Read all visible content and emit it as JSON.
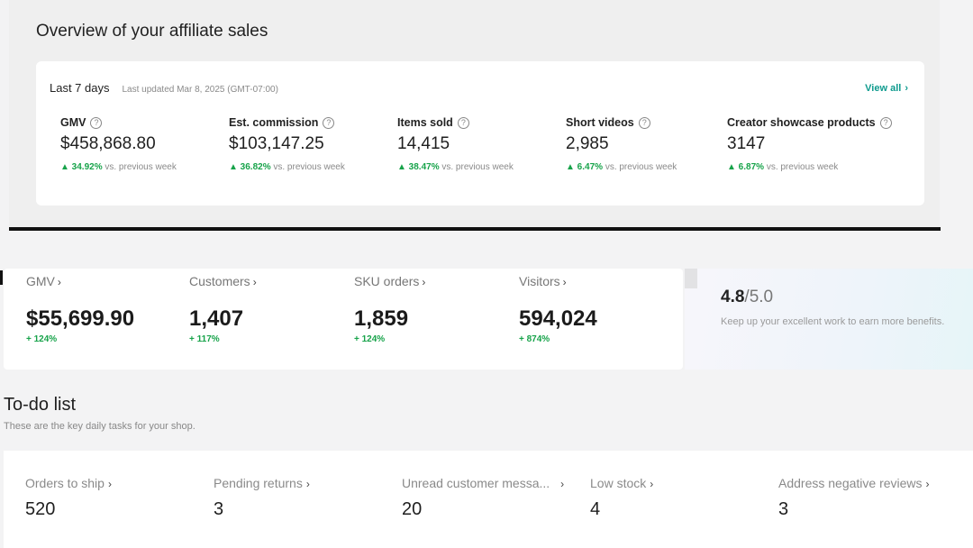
{
  "affiliate": {
    "title": "Overview of your affiliate sales",
    "period": "Last 7 days",
    "updated": "Last updated Mar 8, 2025 (GMT-07:00)",
    "view_all": "View all",
    "metrics": [
      {
        "label": "GMV",
        "value": "$458,868.80",
        "change_pct": "▲ 34.92%",
        "change_text": "vs. previous week"
      },
      {
        "label": "Est. commission",
        "value": "$103,147.25",
        "change_pct": "▲ 36.82%",
        "change_text": "vs. previous week"
      },
      {
        "label": "Items sold",
        "value": "14,415",
        "change_pct": "▲ 38.47%",
        "change_text": "vs. previous week"
      },
      {
        "label": "Short videos",
        "value": "2,985",
        "change_pct": "▲ 6.47%",
        "change_text": "vs. previous week"
      },
      {
        "label": "Creator showcase products",
        "value": "3147",
        "change_pct": "▲ 6.87%",
        "change_text": "vs. previous week"
      }
    ]
  },
  "shop_stats": [
    {
      "label": "GMV",
      "value": "$55,699.90",
      "change": "+ 124%"
    },
    {
      "label": "Customers",
      "value": "1,407",
      "change": "+ 117%"
    },
    {
      "label": "SKU orders",
      "value": "1,859",
      "change": "+ 124%"
    },
    {
      "label": "Visitors",
      "value": "594,024",
      "change": "+ 874%"
    }
  ],
  "rating": {
    "score": "4.8",
    "max": "/5.0",
    "note": "Keep up your excellent work to earn more benefits."
  },
  "todo": {
    "title": "To-do list",
    "subtitle": "These are the key daily tasks for your shop.",
    "items": [
      {
        "label": "Orders to ship",
        "value": "520"
      },
      {
        "label": "Pending returns",
        "value": "3"
      },
      {
        "label": "Unread customer messa...",
        "value": "20"
      },
      {
        "label": "Low stock",
        "value": "4"
      },
      {
        "label": "Address negative reviews",
        "value": "3"
      }
    ]
  },
  "colors": {
    "positive": "#17a34a",
    "accent_link": "#0f9b8e"
  },
  "icons": {
    "help": "help-circle-icon",
    "chevron": "chevron-right-icon"
  }
}
